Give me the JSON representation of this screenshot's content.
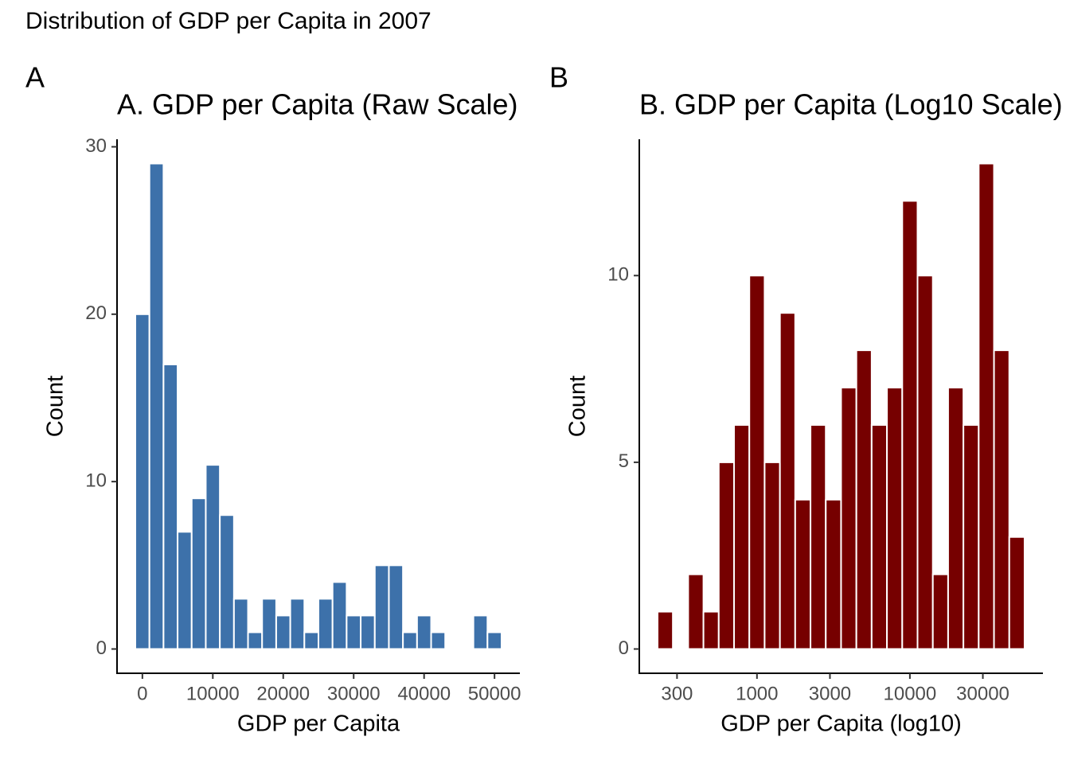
{
  "title": "Distribution of GDP per Capita in 2007",
  "chart_data": [
    {
      "type": "histogram",
      "tag": "A",
      "title": "A. GDP per Capita (Raw Scale)",
      "x_label": "GDP per Capita",
      "y_label": "Count",
      "color": "#3d71aa",
      "log_x": false,
      "bins": [
        -1000,
        1000,
        3000,
        5000,
        7000,
        9000,
        11000,
        13000,
        15000,
        17000,
        19000,
        21000,
        23000,
        25000,
        27000,
        29000,
        31000,
        33000,
        35000,
        37000,
        39000,
        41000,
        43000,
        45000,
        47000,
        49000,
        51000
      ],
      "values": [
        20,
        29,
        17,
        7,
        9,
        11,
        8,
        3,
        1,
        3,
        2,
        3,
        1,
        3,
        4,
        2,
        2,
        5,
        5,
        1,
        2,
        1,
        0,
        0,
        2,
        1
      ],
      "xlim": [
        -3600,
        53600
      ],
      "xticks": [
        0,
        10000,
        20000,
        30000,
        40000,
        50000
      ],
      "ylim": [
        -1.45,
        30.45
      ],
      "yticks": [
        0,
        10,
        20,
        30
      ]
    },
    {
      "type": "histogram",
      "tag": "B",
      "title": "B. GDP per Capita (Log10 Scale)",
      "x_label": "GDP per Capita (log10)",
      "y_label": "Count",
      "color": "#760000",
      "log_x": true,
      "bins": [
        223.9,
        281.8,
        354.8,
        446.7,
        562.3,
        707.9,
        891.3,
        1122,
        1413,
        1778,
        2239,
        2818,
        3548,
        4467,
        5623,
        7079,
        8913,
        11220,
        14125,
        17783,
        22387,
        28184,
        35481,
        44668,
        56234
      ],
      "values": [
        1,
        0,
        2,
        1,
        5,
        6,
        10,
        5,
        9,
        4,
        6,
        4,
        7,
        8,
        6,
        7,
        12,
        10,
        2,
        7,
        6,
        13,
        8,
        3
      ],
      "xlim": [
        170,
        74130
      ],
      "xticks": [
        300,
        1000,
        3000,
        10000,
        30000
      ],
      "ylim": [
        -0.65,
        13.65
      ],
      "yticks": [
        0,
        5,
        10
      ]
    }
  ]
}
